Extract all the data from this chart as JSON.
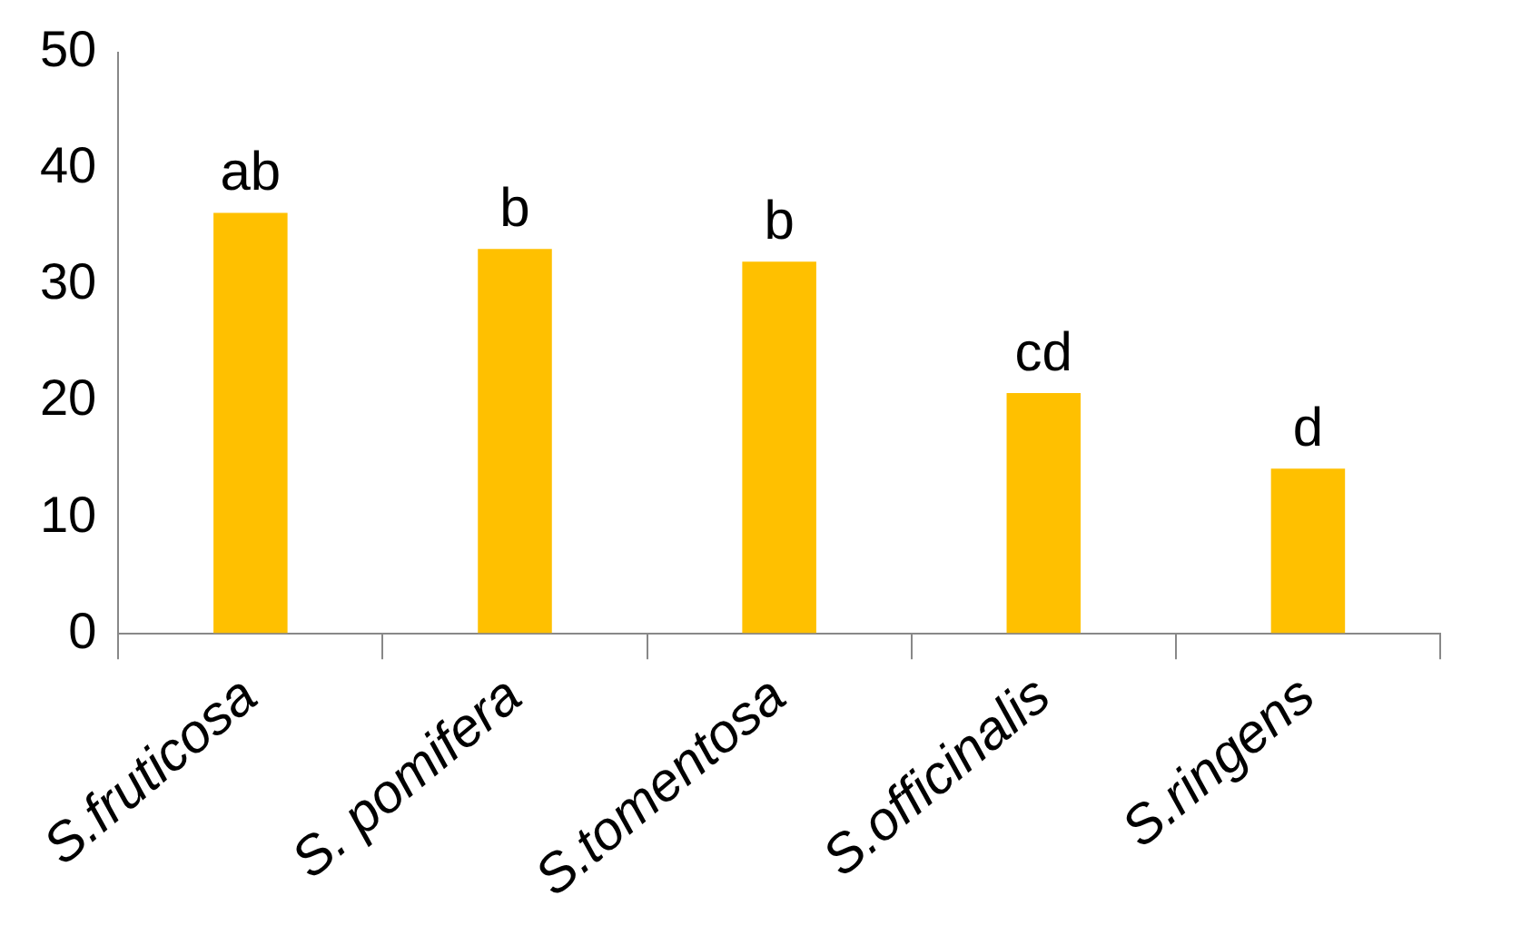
{
  "chart_data": {
    "type": "bar",
    "categories": [
      "S.fruticosa",
      "S. pomifera",
      "S.tomentosa",
      "S.officinalis",
      "S.ringens"
    ],
    "values": [
      36.2,
      33.1,
      32,
      20.7,
      14.2
    ],
    "color": "#ffc000",
    "ylim": [
      0,
      50
    ],
    "yticks": [
      0,
      10,
      20,
      30,
      40,
      50
    ],
    "grid": false,
    "legend": false,
    "annotations": [
      {
        "text": "ab",
        "x": "S.fruticosa",
        "y": 36.2
      },
      {
        "text": "b",
        "x": "S. pomifera",
        "y": 33.1
      },
      {
        "text": "b",
        "x": "S.tomentosa",
        "y": 32
      },
      {
        "text": "cd",
        "x": "S.officinalis",
        "y": 20.7
      },
      {
        "text": "d",
        "x": "S.ringens",
        "y": 14.2
      }
    ]
  }
}
